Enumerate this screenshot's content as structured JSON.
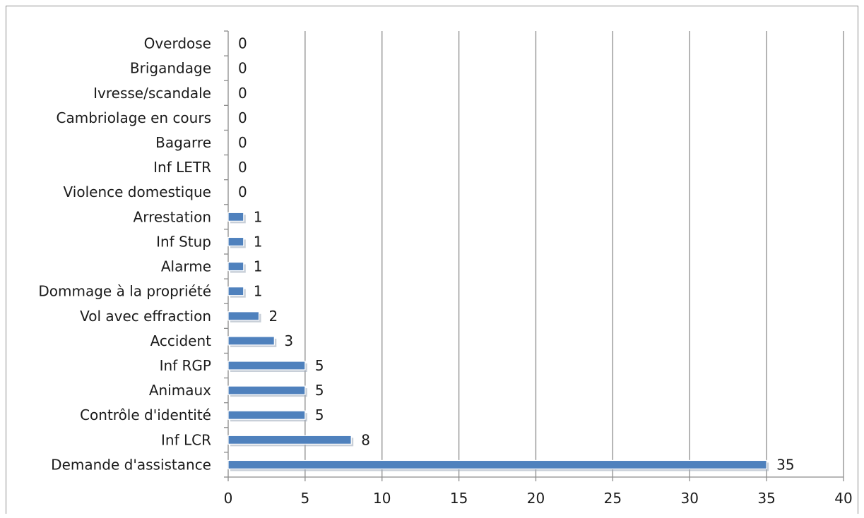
{
  "chart_data": {
    "type": "bar",
    "orientation": "horizontal",
    "title": "",
    "xlabel": "",
    "ylabel": "",
    "xlim": [
      0,
      40
    ],
    "x_ticks": [
      0,
      5,
      10,
      15,
      20,
      25,
      30,
      35,
      40
    ],
    "grid": "vertical-major",
    "legend": "none",
    "bar_color": "#4f81bd",
    "categories": [
      "Demande d'assistance",
      "Inf LCR",
      "Contrôle d'identité",
      "Animaux",
      "Inf RGP",
      "Accident",
      "Vol avec effraction",
      "Dommage à la propriété",
      "Alarme",
      "Inf Stup",
      "Arrestation",
      "Violence domestique",
      "Inf LETR",
      "Bagarre",
      "Cambriolage en cours",
      "Ivresse/scandale",
      "Brigandage",
      "Overdose"
    ],
    "values": [
      35,
      8,
      5,
      5,
      5,
      3,
      2,
      1,
      1,
      1,
      1,
      0,
      0,
      0,
      0,
      0,
      0,
      0
    ],
    "data_labels": [
      "35",
      "8",
      "5",
      "5",
      "5",
      "3",
      "2",
      "1",
      "1",
      "1",
      "1",
      "0",
      "0",
      "0",
      "0",
      "0",
      "0",
      "0"
    ]
  }
}
